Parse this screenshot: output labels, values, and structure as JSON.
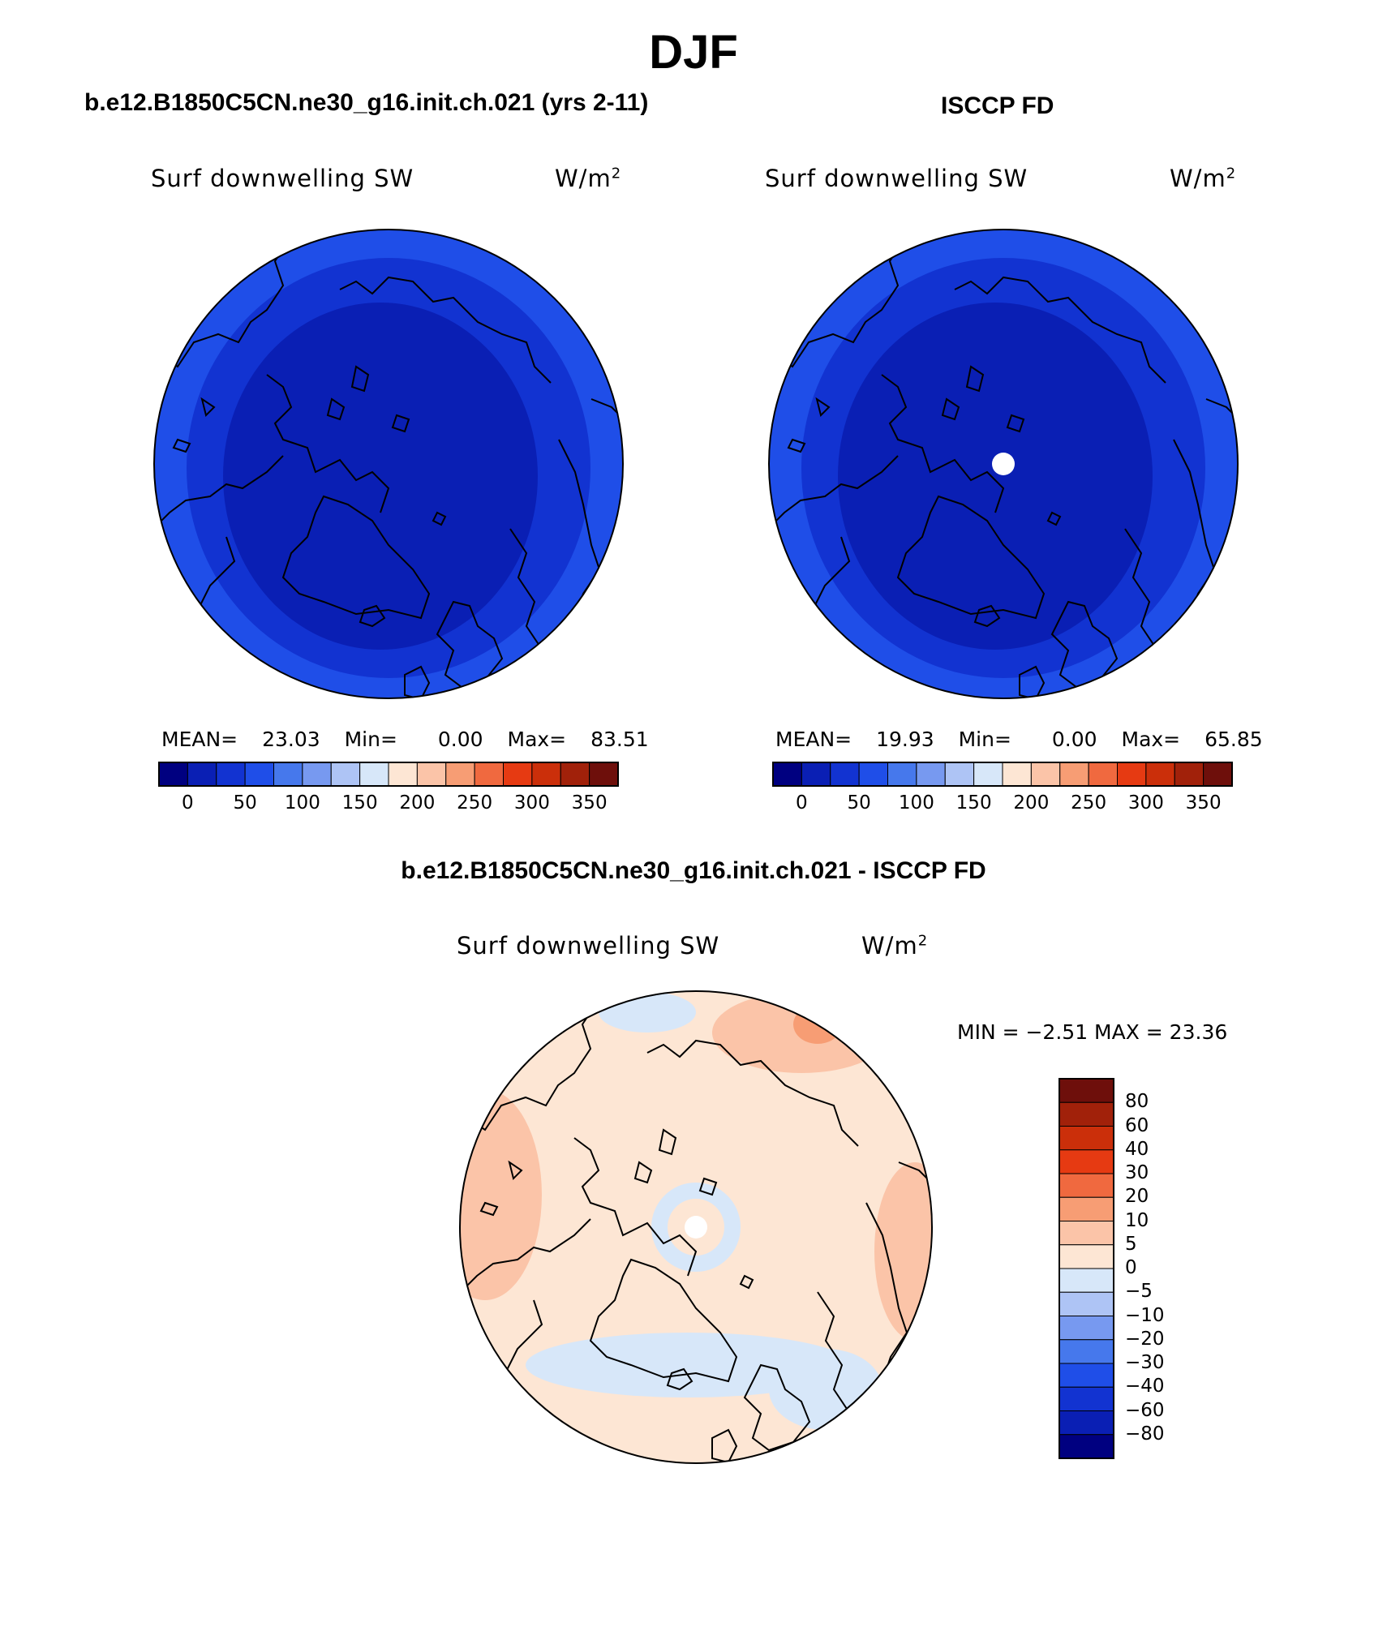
{
  "season": "DJF",
  "colors": {
    "abs_scale": [
      "#000080",
      "#0a1fb4",
      "#1233d1",
      "#1f4ee8",
      "#4678ec",
      "#7799f0",
      "#aec4f5",
      "#d7e7f9",
      "#fde6d4",
      "#fbc4a8",
      "#f79d74",
      "#f0693f",
      "#e63a12",
      "#cb2f0a",
      "#a1210a",
      "#6e0f0b"
    ],
    "diff_scale": [
      "#000080",
      "#0a1fb4",
      "#1233d1",
      "#1f4ee8",
      "#4678ec",
      "#7799f0",
      "#aec4f5",
      "#d7e7f9",
      "#fde6d4",
      "#fbc4a8",
      "#f79d74",
      "#f0693f",
      "#e63a12",
      "#cb2f0a",
      "#a1210a",
      "#6e0f0b"
    ],
    "map_dark": "#0a1fb4",
    "map_mid": "#1233d1",
    "map_light": "#1f4ee8"
  },
  "panels": {
    "model": {
      "title": "b.e12.B1850C5CN.ne30_g16.init.ch.021 (yrs 2-11)",
      "variable": "Surf downwelling SW",
      "units": "W/m",
      "units_sup": "2",
      "mean_label": "MEAN=",
      "mean": "23.03",
      "min_label": "Min=",
      "min": "0.00",
      "max_label": "Max=",
      "max": "83.51"
    },
    "obs": {
      "title": "ISCCP FD",
      "variable": "Surf downwelling SW",
      "units": "W/m",
      "units_sup": "2",
      "mean_label": "MEAN=",
      "mean": "19.93",
      "min_label": "Min=",
      "min": "0.00",
      "max_label": "Max=",
      "max": "65.85"
    },
    "diff": {
      "title": "b.e12.B1850C5CN.ne30_g16.init.ch.021 - ISCCP FD",
      "variable": "Surf downwelling SW",
      "units": "W/m",
      "units_sup": "2",
      "minmax": "MIN =   −2.51  MAX =   23.36"
    }
  },
  "abs_ticks": [
    "0",
    "50",
    "100",
    "150",
    "200",
    "250",
    "300",
    "350"
  ],
  "diff_ticks": [
    "80",
    "60",
    "40",
    "30",
    "20",
    "10",
    "5",
    "0",
    "−5",
    "−10",
    "−20",
    "−30",
    "−40",
    "−60",
    "−80"
  ]
}
